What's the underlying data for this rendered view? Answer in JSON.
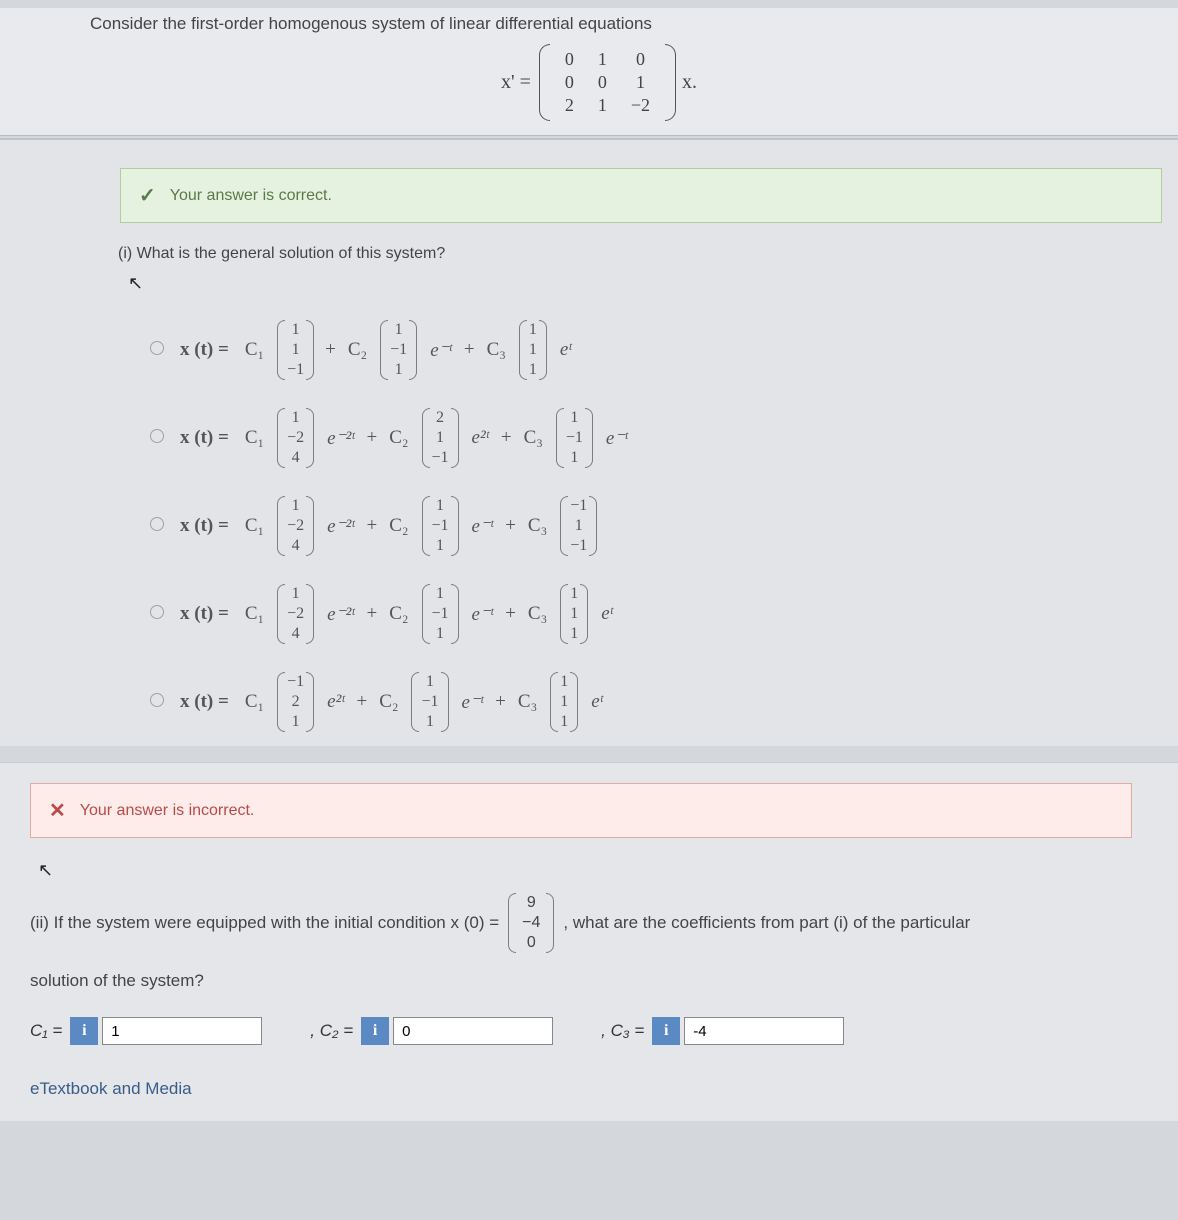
{
  "header": {
    "prompt": "Consider the first-order homogenous system of linear differential equations",
    "equation_lhs": "x' =",
    "matrix_rows": [
      [
        "0",
        "1",
        "0"
      ],
      [
        "0",
        "0",
        "1"
      ],
      [
        "2",
        "1",
        "−2"
      ]
    ],
    "equation_rhs": "x."
  },
  "feedback_correct": {
    "icon": "✓",
    "text": "Your answer is correct.",
    "bg_color": "#e6f2e0",
    "border_color": "#b0cf9c",
    "text_color": "#5a7a4a"
  },
  "feedback_incorrect": {
    "icon": "✕",
    "text": "Your answer is incorrect.",
    "bg_color": "#fdecea",
    "border_color": "#e8a9a3",
    "text_color": "#b94a48"
  },
  "part_i": {
    "label": "(i) What is the general solution of this system?",
    "cursor_glyph": "↖",
    "options": [
      {
        "lead": "x (t) = ",
        "terms": [
          {
            "coef": "C₁",
            "vec": [
              "1",
              "1",
              "−1"
            ],
            "exp": ""
          },
          {
            "pre": " + ",
            "coef": "C₂",
            "vec": [
              "1",
              "−1",
              "1"
            ],
            "exp": "e⁻ᵗ"
          },
          {
            "pre": " + ",
            "coef": "C₃",
            "vec": [
              "1",
              "1",
              "1"
            ],
            "exp": "eᵗ"
          }
        ]
      },
      {
        "lead": "x (t) = ",
        "terms": [
          {
            "coef": "C₁",
            "vec": [
              "1",
              "−2",
              "4"
            ],
            "exp": "e⁻²ᵗ"
          },
          {
            "pre": " + ",
            "coef": "C₂",
            "vec": [
              "2",
              "1",
              "−1"
            ],
            "exp": "e²ᵗ"
          },
          {
            "pre": " + ",
            "coef": "C₃",
            "vec": [
              "1",
              "−1",
              "1"
            ],
            "exp": "e⁻ᵗ"
          }
        ]
      },
      {
        "lead": "x (t) = ",
        "terms": [
          {
            "coef": "C₁",
            "vec": [
              "1",
              "−2",
              "4"
            ],
            "exp": "e⁻²ᵗ"
          },
          {
            "pre": " + ",
            "coef": "C₂",
            "vec": [
              "1",
              "−1",
              "1"
            ],
            "exp": "e⁻ᵗ"
          },
          {
            "pre": " + ",
            "coef": "C₃",
            "vec": [
              "−1",
              "1",
              "−1"
            ],
            "exp": ""
          }
        ]
      },
      {
        "lead": "x (t) = ",
        "terms": [
          {
            "coef": "C₁",
            "vec": [
              "1",
              "−2",
              "4"
            ],
            "exp": "e⁻²ᵗ"
          },
          {
            "pre": " + ",
            "coef": "C₂",
            "vec": [
              "1",
              "−1",
              "1"
            ],
            "exp": "e⁻ᵗ"
          },
          {
            "pre": " + ",
            "coef": "C₃",
            "vec": [
              "1",
              "1",
              "1"
            ],
            "exp": "eᵗ"
          }
        ]
      },
      {
        "lead": "x (t) = ",
        "terms": [
          {
            "coef": "C₁",
            "vec": [
              "−1",
              "2",
              "1"
            ],
            "exp": "e²ᵗ"
          },
          {
            "pre": " + ",
            "coef": "C₂",
            "vec": [
              "1",
              "−1",
              "1"
            ],
            "exp": "e⁻ᵗ"
          },
          {
            "pre": " + ",
            "coef": "C₃",
            "vec": [
              "1",
              "1",
              "1"
            ],
            "exp": "eᵗ"
          }
        ]
      }
    ]
  },
  "part_ii": {
    "text_before": "(ii) If the system were equipped with the initial condition x (0) = ",
    "ic_vector": [
      "9",
      "−4",
      "0"
    ],
    "text_after": ", what are the coefficients from part (i) of the particular",
    "text_line2": "solution of the system?",
    "inputs": [
      {
        "label": "C₁ =",
        "value": "1"
      },
      {
        "label": ", C₂ =",
        "value": "0"
      },
      {
        "label": ", C₃ =",
        "value": "-4"
      }
    ],
    "info_glyph": "i"
  },
  "etextbook_label": "eTextbook and Media",
  "colors": {
    "page_bg": "#d4d7db",
    "panel_bg": "#e2e4e7",
    "info_btn_bg": "#5b89c4",
    "link_color": "#3a5c88"
  }
}
